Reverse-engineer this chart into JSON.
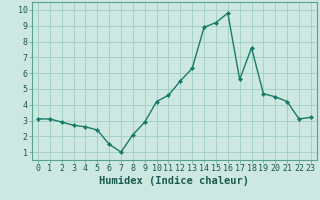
{
  "x": [
    0,
    1,
    2,
    3,
    4,
    5,
    6,
    7,
    8,
    9,
    10,
    11,
    12,
    13,
    14,
    15,
    16,
    17,
    18,
    19,
    20,
    21,
    22,
    23
  ],
  "y": [
    3.1,
    3.1,
    2.9,
    2.7,
    2.6,
    2.4,
    1.5,
    1.0,
    2.1,
    2.9,
    4.2,
    4.6,
    5.5,
    6.3,
    8.9,
    9.2,
    9.8,
    5.6,
    7.6,
    4.7,
    4.5,
    4.2,
    3.1,
    3.2
  ],
  "line_color": "#1a7a6a",
  "marker": "D",
  "marker_size": 2.0,
  "bg_color": "#cce8e0",
  "grid_color": "#a0ccc4",
  "xlabel": "Humidex (Indice chaleur)",
  "xlim": [
    -0.5,
    23.5
  ],
  "ylim": [
    0.5,
    10.5
  ],
  "yticks": [
    1,
    2,
    3,
    4,
    5,
    6,
    7,
    8,
    9,
    10
  ],
  "xticks": [
    0,
    1,
    2,
    3,
    4,
    5,
    6,
    7,
    8,
    9,
    10,
    11,
    12,
    13,
    14,
    15,
    16,
    17,
    18,
    19,
    20,
    21,
    22,
    23
  ],
  "xlabel_fontsize": 7.5,
  "tick_fontsize": 6.0,
  "linewidth": 1.0
}
